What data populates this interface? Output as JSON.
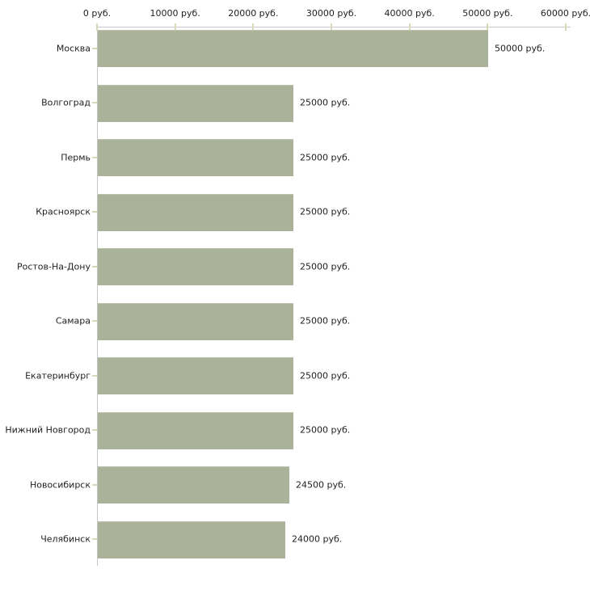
{
  "chart_data": {
    "type": "bar",
    "orientation": "horizontal",
    "title": "",
    "xlabel": "",
    "ylabel": "",
    "unit": "руб.",
    "xlim": [
      0,
      60000
    ],
    "x_ticks": [
      0,
      10000,
      20000,
      30000,
      40000,
      50000,
      60000
    ],
    "x_tick_labels": [
      "0 руб.",
      "10000 руб.",
      "20000 руб.",
      "30000 руб.",
      "40000 руб.",
      "50000 руб.",
      "60000 руб."
    ],
    "categories": [
      "Москва",
      "Волгоград",
      "Пермь",
      "Красноярск",
      "Ростов-На-Дону",
      "Самара",
      "Екатеринбург",
      "Нижний Новгород",
      "Новосибирск",
      "Челябинск"
    ],
    "values": [
      50000,
      25000,
      25000,
      25000,
      25000,
      25000,
      25000,
      25000,
      24500,
      24000
    ],
    "value_labels": [
      "50000 руб.",
      "25000 руб.",
      "25000 руб.",
      "25000 руб.",
      "25000 руб.",
      "25000 руб.",
      "25000 руб.",
      "25000 руб.",
      "24500 руб.",
      "24000 руб."
    ],
    "grid": false,
    "legend": false,
    "colors": {
      "bar": "#abb29a",
      "bar_top_edge": "#bcc2ab",
      "axis": "#c6c6c6",
      "tick": "#d9d9b9",
      "text": "#1f1f1f",
      "background": "#ffffff"
    }
  }
}
